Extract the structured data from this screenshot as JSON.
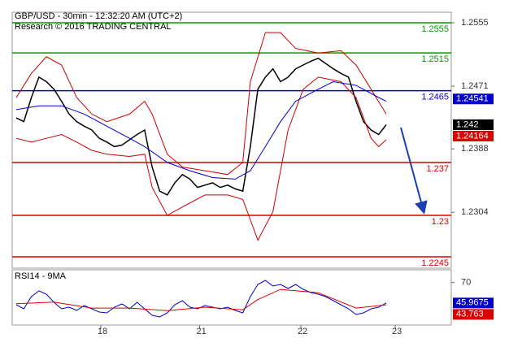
{
  "chart_data": [
    {
      "type": "line",
      "title": "GBP/USD - 30min - 12:32:20 AM (UTC+2)",
      "subtitle": "Research © 2016 TRADING CENTRAL",
      "xlim": [
        0,
        56
      ],
      "ylim": [
        1.223,
        1.2569
      ],
      "yticks": [
        1.2304,
        1.2388,
        1.2471,
        1.2555
      ],
      "series": [
        {
          "color": "#000000",
          "x": [
            0,
            1,
            2,
            3,
            4,
            5,
            6,
            7,
            8,
            9,
            10,
            11,
            12,
            13,
            14,
            15,
            16,
            17,
            18,
            19,
            20,
            21,
            22,
            23,
            24,
            25,
            26,
            27,
            28,
            29,
            30,
            31,
            32,
            33,
            34,
            35,
            36,
            37,
            38,
            39,
            40,
            41,
            42,
            43,
            44,
            45,
            46,
            47,
            48,
            49
          ],
          "values": [
            1.2429,
            1.2424,
            1.2456,
            1.2483,
            1.2477,
            1.2467,
            1.2451,
            1.2434,
            1.2424,
            1.2418,
            1.2413,
            1.2402,
            1.2397,
            1.2391,
            1.2393,
            1.24,
            1.2407,
            1.2413,
            1.2364,
            1.2332,
            1.2327,
            1.2343,
            1.2354,
            1.2348,
            1.2337,
            1.234,
            1.2343,
            1.2337,
            1.234,
            1.2335,
            1.2332,
            1.2391,
            1.2467,
            1.2483,
            1.2494,
            1.2477,
            1.2483,
            1.2494,
            1.2499,
            1.2504,
            1.2508,
            1.2501,
            1.2494,
            1.2488,
            1.2483,
            1.2451,
            1.2424,
            1.2413,
            1.2407,
            1.242
          ]
        },
        {
          "color": "#cc0000",
          "x": [
            0,
            2,
            4,
            6,
            8,
            10,
            12,
            15,
            17,
            18,
            20,
            22,
            25,
            28,
            30,
            31,
            33,
            35,
            37,
            40,
            43,
            45,
            47,
            49
          ],
          "values": [
            1.2456,
            1.2488,
            1.251,
            1.2499,
            1.2456,
            1.2434,
            1.2424,
            1.2434,
            1.2451,
            1.2434,
            1.2381,
            1.2364,
            1.2359,
            1.2354,
            1.237,
            1.2477,
            1.2542,
            1.2542,
            1.2521,
            1.2515,
            1.2518,
            1.2499,
            1.2467,
            1.2434
          ]
        },
        {
          "color": "#cc0000",
          "x": [
            0,
            2,
            4,
            6,
            8,
            10,
            12,
            15,
            17,
            18,
            20,
            22,
            25,
            28,
            30,
            31,
            32,
            34,
            36,
            38,
            40,
            43,
            45,
            47,
            48,
            49
          ],
          "values": [
            1.2402,
            1.2397,
            1.2402,
            1.2407,
            1.2397,
            1.2386,
            1.2381,
            1.2378,
            1.2381,
            1.2337,
            1.23,
            1.2311,
            1.2327,
            1.2327,
            1.2321,
            1.2294,
            1.2267,
            1.2305,
            1.2413,
            1.2467,
            1.2483,
            1.2477,
            1.2456,
            1.2402,
            1.2391,
            1.24
          ]
        },
        {
          "color": "#0000cc",
          "x": [
            0,
            3,
            6,
            9,
            12,
            15,
            17,
            20,
            23,
            26,
            29,
            31,
            33,
            35,
            37,
            40,
            42,
            45,
            48,
            49
          ],
          "values": [
            1.244,
            1.2445,
            1.2445,
            1.2434,
            1.2418,
            1.2402,
            1.2391,
            1.237,
            1.2359,
            1.235,
            1.2348,
            1.2359,
            1.2391,
            1.2424,
            1.2451,
            1.2467,
            1.2477,
            1.2472,
            1.2456,
            1.2451
          ]
        }
      ],
      "levels": [
        {
          "value": 1.2555,
          "color": "#009900"
        },
        {
          "value": 1.2515,
          "color": "#009900"
        },
        {
          "value": 1.2465,
          "color": "#0000cc"
        },
        {
          "value": 1.237,
          "color": "#dd0000"
        },
        {
          "value": 1.23,
          "color": "#dd0000"
        },
        {
          "value": 1.2245,
          "color": "#dd0000"
        }
      ],
      "price_tags": [
        {
          "value": 1.24541,
          "color": "#0000cc"
        },
        {
          "value": 1.242,
          "color": "#000000"
        },
        {
          "value": 1.24164,
          "color": "#dd0000"
        }
      ]
    },
    {
      "type": "line",
      "title": "RSI14 - 9MA",
      "xlim": [
        0,
        56
      ],
      "xticks": [
        {
          "value": 11.2,
          "label": "18"
        },
        {
          "value": 24.3,
          "label": "21"
        },
        {
          "value": 37.7,
          "label": "22"
        },
        {
          "value": 50.2,
          "label": "23"
        }
      ],
      "ylim": [
        20,
        85
      ],
      "yticks": [
        70
      ],
      "series": [
        {
          "color": "#0000cc",
          "x": [
            0,
            1,
            2,
            3,
            4,
            5,
            6,
            7,
            8,
            9,
            10,
            11,
            12,
            13,
            14,
            15,
            16,
            17,
            18,
            19,
            20,
            21,
            22,
            23,
            24,
            25,
            26,
            27,
            28,
            29,
            30,
            31,
            32,
            33,
            34,
            35,
            36,
            37,
            38,
            39,
            40,
            41,
            42,
            43,
            44,
            45,
            46,
            47,
            48,
            49
          ],
          "values": [
            43.9,
            39.1,
            53.5,
            60.2,
            56.3,
            46.8,
            39.1,
            41.0,
            37.2,
            42.9,
            39.1,
            35.3,
            34.3,
            41.0,
            44.9,
            39.1,
            46.8,
            39.1,
            31.5,
            29.6,
            34.3,
            43.9,
            48.7,
            41.0,
            39.1,
            42.9,
            41.0,
            39.1,
            41.0,
            37.2,
            34.3,
            53.5,
            67.8,
            72.6,
            65.9,
            67.8,
            63.0,
            67.8,
            62.1,
            58.2,
            56.3,
            53.5,
            48.7,
            43.9,
            39.1,
            32.4,
            34.3,
            39.1,
            41.0,
            46.0
          ]
        },
        {
          "color": "#dd0000",
          "x": [
            0,
            5,
            10,
            15,
            20,
            25,
            30,
            32,
            35,
            40,
            45,
            49
          ],
          "values": [
            45,
            47,
            40,
            40,
            37,
            41,
            38,
            50,
            62,
            58,
            40,
            43.8
          ]
        }
      ],
      "price_tags": [
        {
          "value": 45.9675,
          "color": "#0000cc"
        },
        {
          "value": 43.763,
          "color": "#dd0000"
        }
      ]
    }
  ]
}
